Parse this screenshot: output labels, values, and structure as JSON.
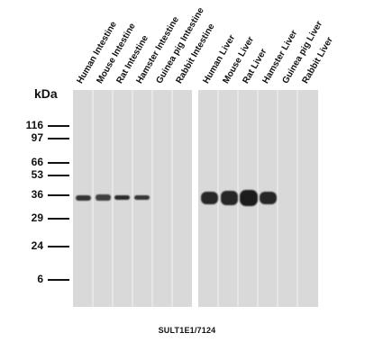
{
  "y_axis_label": "kDa",
  "molecular_weight_markers": [
    "116",
    "97",
    "66",
    "53",
    "36",
    "29",
    "24",
    "6"
  ],
  "lanes": [
    "Human Intestine",
    "Mouse Intestine",
    "Rat Intestine",
    "Hamster Intestine",
    "Guinea pig Intestine",
    "Rabbit Intestine",
    "Human Liver",
    "Mouse Liver",
    "Rat Liver",
    "Hamster Liver",
    "Guinea pig Liver",
    "Rabbit Liver"
  ],
  "caption": "SULT1E1/7124",
  "colors": {
    "membrane": "#d9d9d9",
    "lane_separator": "#f2f2f2",
    "band": "#1a1a1a"
  }
}
